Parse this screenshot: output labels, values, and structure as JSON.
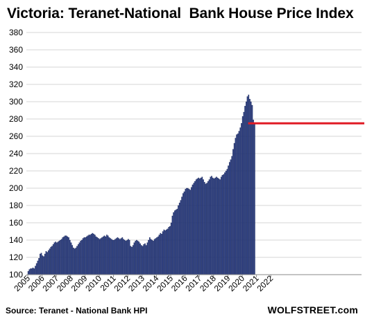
{
  "chart_data": {
    "type": "bar",
    "title": "Victoria: Teranet-National  Bank House Price Index",
    "source": "Source: Teranet - National Bank HPI",
    "credit": "WOLFSTREET.com",
    "ylim": [
      100,
      380
    ],
    "yticks": [
      100,
      120,
      140,
      160,
      180,
      200,
      220,
      240,
      260,
      280,
      300,
      320,
      340,
      360,
      380
    ],
    "xticks": [
      "2005",
      "2006",
      "2007",
      "2008",
      "2009",
      "2010",
      "2011",
      "2012",
      "2013",
      "2014",
      "2015",
      "2016",
      "2017",
      "2018",
      "2019",
      "2020",
      "2021",
      "2022"
    ],
    "grid": true,
    "bar_color": "#2b3f86",
    "reference_line": {
      "value": 275,
      "color": "#e01b24",
      "x_start": "2020-06"
    },
    "start": "2005-01",
    "frequency": "monthly",
    "values": [
      104,
      106,
      107,
      107,
      108,
      107,
      110,
      113,
      116,
      119,
      124,
      125,
      122,
      121,
      124,
      127,
      126,
      128,
      130,
      132,
      133,
      135,
      137,
      138,
      137,
      138,
      139,
      140,
      141,
      143,
      144,
      145,
      145,
      144,
      143,
      140,
      137,
      134,
      131,
      130,
      131,
      133,
      135,
      137,
      139,
      140,
      142,
      143,
      143,
      144,
      145,
      146,
      146,
      147,
      148,
      147,
      146,
      144,
      143,
      142,
      141,
      142,
      143,
      144,
      145,
      144,
      146,
      145,
      143,
      142,
      141,
      140,
      140,
      141,
      142,
      143,
      142,
      141,
      142,
      143,
      141,
      140,
      139,
      140,
      141,
      140,
      133,
      132,
      134,
      137,
      139,
      140,
      139,
      138,
      136,
      134,
      133,
      135,
      136,
      134,
      137,
      140,
      143,
      141,
      140,
      139,
      141,
      142,
      143,
      144,
      146,
      148,
      147,
      150,
      152,
      151,
      152,
      153,
      155,
      156,
      160,
      168,
      172,
      174,
      175,
      176,
      180,
      183,
      186,
      190,
      194,
      196,
      199,
      200,
      200,
      199,
      198,
      201,
      204,
      206,
      208,
      210,
      211,
      212,
      211,
      212,
      213,
      210,
      207,
      205,
      206,
      208,
      210,
      213,
      214,
      212,
      211,
      212,
      213,
      212,
      211,
      210,
      213,
      215,
      216,
      218,
      220,
      222,
      226,
      230,
      233,
      237,
      245,
      252,
      258,
      262,
      263,
      266,
      270,
      275,
      283,
      288,
      295,
      300,
      306,
      308,
      303,
      300,
      296,
      279,
      275
    ]
  }
}
